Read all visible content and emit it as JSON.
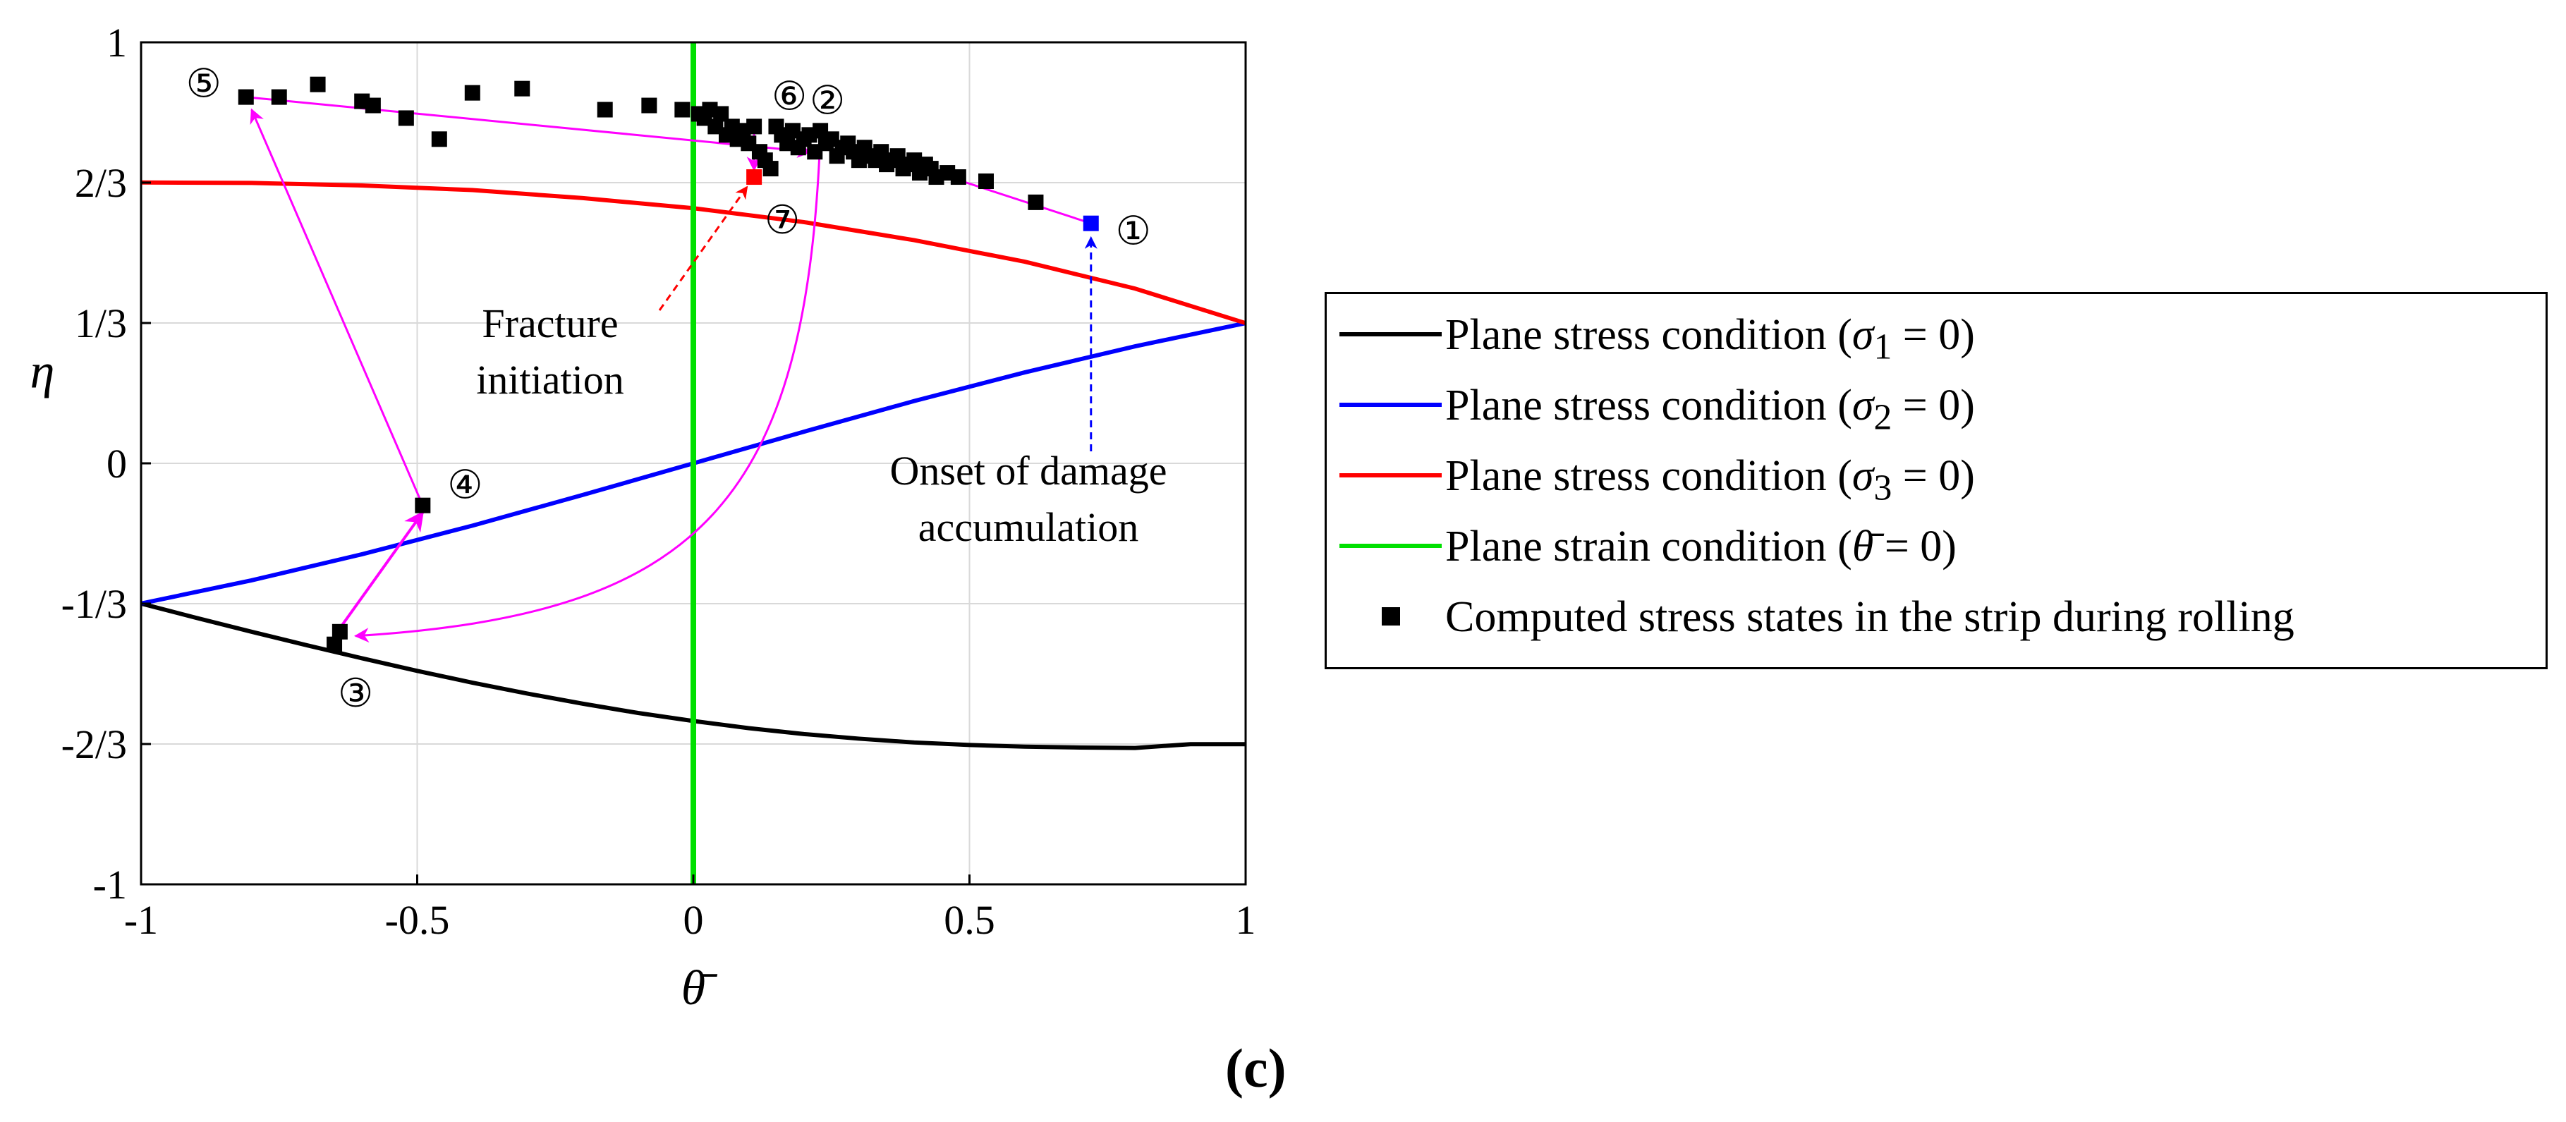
{
  "chart_data": {
    "type": "scatter",
    "xlabel": "θ̄",
    "ylabel": "η",
    "xlim": [
      -1,
      1
    ],
    "ylim": [
      -1,
      1
    ],
    "grid": true,
    "x_ticks": [
      {
        "value": -1,
        "label": "-1"
      },
      {
        "value": -0.5,
        "label": "-0.5"
      },
      {
        "value": 0,
        "label": "0"
      },
      {
        "value": 0.5,
        "label": "0.5"
      },
      {
        "value": 1,
        "label": "1"
      }
    ],
    "y_ticks": [
      {
        "value": 1,
        "label": "1"
      },
      {
        "value": 0.6667,
        "label": "2/3"
      },
      {
        "value": 0.3333,
        "label": "1/3"
      },
      {
        "value": 0,
        "label": "0"
      },
      {
        "value": -0.3333,
        "label": "-1/3"
      },
      {
        "value": -0.6667,
        "label": "-2/3"
      },
      {
        "value": -1,
        "label": "-1"
      }
    ],
    "curves": [
      {
        "name": "Plane stress condition (σ1 = 0)",
        "label_main": "Plane stress condition (",
        "label_math": "σ",
        "label_sub": "1",
        "label_rest": " = 0)",
        "color": "#000000",
        "x": [
          -1,
          -0.9,
          -0.8,
          -0.7,
          -0.6,
          -0.5,
          -0.4,
          -0.3,
          -0.2,
          -0.1,
          0,
          0.1,
          0.2,
          0.3,
          0.4,
          0.5,
          0.6,
          0.7,
          0.8,
          0.9,
          1
        ],
        "y": [
          -0.333,
          -0.367,
          -0.4,
          -0.432,
          -0.463,
          -0.493,
          -0.521,
          -0.547,
          -0.571,
          -0.593,
          -0.612,
          -0.629,
          -0.643,
          -0.654,
          -0.663,
          -0.669,
          -0.673,
          -0.675,
          -0.676,
          -0.667,
          -0.667
        ]
      },
      {
        "name": "Plane stress condition (σ2 = 0)",
        "label_main": "Plane stress condition (",
        "label_math": "σ",
        "label_sub": "2",
        "label_rest": " = 0)",
        "color": "#0000ff",
        "x": [
          -1,
          -0.8,
          -0.6,
          -0.4,
          -0.2,
          0,
          0.2,
          0.4,
          0.6,
          0.8,
          1
        ],
        "y": [
          -0.333,
          -0.278,
          -0.216,
          -0.148,
          -0.075,
          0,
          0.075,
          0.148,
          0.216,
          0.278,
          0.333
        ]
      },
      {
        "name": "Plane stress condition (σ3 = 0)",
        "label_main": "Plane stress condition (",
        "label_math": "σ",
        "label_sub": "3",
        "label_rest": " = 0)",
        "color": "#ff0000",
        "x": [
          -1,
          -0.8,
          -0.6,
          -0.4,
          -0.2,
          0,
          0.2,
          0.4,
          0.6,
          0.8,
          1
        ],
        "y": [
          0.667,
          0.666,
          0.66,
          0.649,
          0.63,
          0.606,
          0.573,
          0.53,
          0.479,
          0.415,
          0.333
        ]
      },
      {
        "name": "Plane strain condition (θ̄ = 0)",
        "label_main": "Plane strain condition (",
        "label_math": "θ̄",
        "label_sub": "",
        "label_rest": " = 0)",
        "color": "#00e000",
        "x": [
          0,
          0
        ],
        "y": [
          -1,
          1
        ]
      }
    ],
    "scatter": {
      "name": "Computed stress states in the strip during rolling",
      "color": "#000000",
      "points": [
        [
          -0.81,
          0.87
        ],
        [
          -0.75,
          0.87
        ],
        [
          -0.68,
          0.9
        ],
        [
          -0.6,
          0.86
        ],
        [
          -0.58,
          0.85
        ],
        [
          -0.52,
          0.82
        ],
        [
          -0.46,
          0.77
        ],
        [
          -0.4,
          0.88
        ],
        [
          -0.31,
          0.89
        ],
        [
          -0.16,
          0.84
        ],
        [
          -0.08,
          0.85
        ],
        [
          -0.02,
          0.84
        ],
        [
          0.01,
          0.83
        ],
        [
          0.02,
          0.82
        ],
        [
          0.03,
          0.84
        ],
        [
          0.04,
          0.8
        ],
        [
          0.05,
          0.83
        ],
        [
          0.06,
          0.78
        ],
        [
          0.07,
          0.8
        ],
        [
          0.08,
          0.77
        ],
        [
          0.09,
          0.79
        ],
        [
          0.1,
          0.76
        ],
        [
          0.11,
          0.8
        ],
        [
          0.12,
          0.74
        ],
        [
          0.13,
          0.72
        ],
        [
          0.14,
          0.7
        ],
        [
          0.15,
          0.8
        ],
        [
          0.16,
          0.78
        ],
        [
          0.17,
          0.76
        ],
        [
          0.18,
          0.79
        ],
        [
          0.19,
          0.75
        ],
        [
          0.2,
          0.77
        ],
        [
          0.21,
          0.78
        ],
        [
          0.22,
          0.74
        ],
        [
          0.23,
          0.79
        ],
        [
          0.24,
          0.76
        ],
        [
          0.25,
          0.77
        ],
        [
          0.26,
          0.73
        ],
        [
          0.27,
          0.75
        ],
        [
          0.28,
          0.76
        ],
        [
          0.29,
          0.74
        ],
        [
          0.3,
          0.72
        ],
        [
          0.31,
          0.75
        ],
        [
          0.32,
          0.73
        ],
        [
          0.33,
          0.72
        ],
        [
          0.34,
          0.74
        ],
        [
          0.35,
          0.71
        ],
        [
          0.36,
          0.72
        ],
        [
          0.37,
          0.73
        ],
        [
          0.38,
          0.7
        ],
        [
          0.39,
          0.71
        ],
        [
          0.4,
          0.72
        ],
        [
          0.41,
          0.69
        ],
        [
          0.42,
          0.71
        ],
        [
          0.43,
          0.7
        ],
        [
          0.44,
          0.68
        ],
        [
          0.46,
          0.69
        ],
        [
          0.48,
          0.68
        ],
        [
          0.53,
          0.67
        ],
        [
          0.62,
          0.62
        ],
        [
          -0.65,
          -0.43
        ],
        [
          -0.64,
          -0.4
        ],
        [
          -0.49,
          -0.1
        ]
      ],
      "special_points": [
        {
          "x": 0.72,
          "y": 0.57,
          "color": "#0000ff"
        },
        {
          "x": 0.11,
          "y": 0.68,
          "color": "#ff0000"
        }
      ]
    },
    "path_points": [
      {
        "id": "1",
        "label": "①",
        "x": 0.72,
        "y": 0.57
      },
      {
        "id": "2",
        "label": "②",
        "x": 0.23,
        "y": 0.78
      },
      {
        "id": "3",
        "label": "③",
        "x": -0.65,
        "y": -0.41
      },
      {
        "id": "4",
        "label": "④",
        "x": -0.49,
        "y": -0.1
      },
      {
        "id": "5",
        "label": "⑤",
        "x": -0.81,
        "y": 0.87
      },
      {
        "id": "6",
        "label": "⑥",
        "x": 0.11,
        "y": 0.79
      },
      {
        "id": "7",
        "label": "⑦",
        "x": 0.11,
        "y": 0.68
      }
    ],
    "annotations": [
      {
        "id": "fracture",
        "lines": [
          "Fracture",
          "initiation"
        ],
        "color": "#ff0000",
        "arrow_to": [
          0.11,
          0.67
        ]
      },
      {
        "id": "onset",
        "lines": [
          "Onset of damage",
          "accumulation"
        ],
        "color": "#0000ff",
        "arrow_to": [
          0.72,
          0.56
        ]
      }
    ]
  },
  "panel_label": "(c)"
}
